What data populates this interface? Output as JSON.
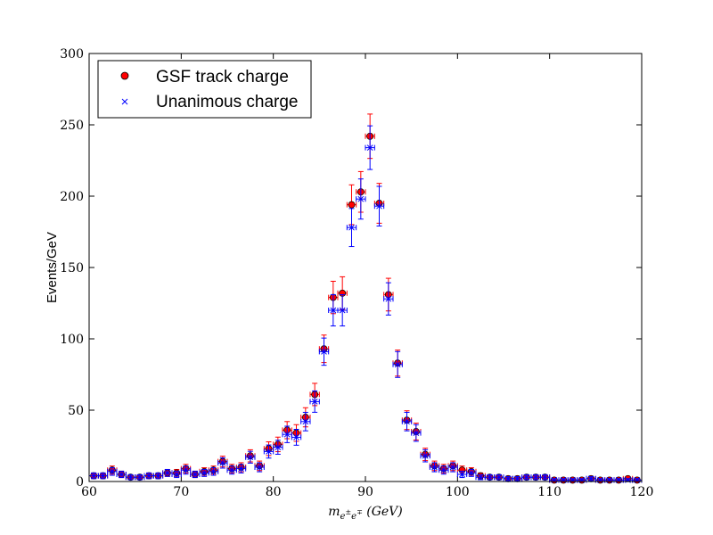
{
  "chart_data": {
    "type": "scatter",
    "title": "",
    "xlabel": "",
    "ylabel": "Events/GeV",
    "xlim": [
      60,
      120
    ],
    "ylim": [
      0,
      300
    ],
    "xticks": [
      "60",
      "70",
      "80",
      "90",
      "100",
      "110",
      "120"
    ],
    "yticks": [
      "0",
      "50",
      "100",
      "150",
      "200",
      "250",
      "300"
    ],
    "grid": false,
    "legend_position": "top-left",
    "x": [
      60.5,
      61.5,
      62.5,
      63.5,
      64.5,
      65.5,
      66.5,
      67.5,
      68.5,
      69.5,
      70.5,
      71.5,
      72.5,
      73.5,
      74.5,
      75.5,
      76.5,
      77.5,
      78.5,
      79.5,
      80.5,
      81.5,
      82.5,
      83.5,
      84.5,
      85.5,
      86.5,
      87.5,
      88.5,
      89.5,
      90.5,
      91.5,
      92.5,
      93.5,
      94.5,
      95.5,
      96.5,
      97.5,
      98.5,
      99.5,
      100.5,
      101.5,
      102.5,
      103.5,
      104.5,
      105.5,
      106.5,
      107.5,
      108.5,
      109.5,
      110.5,
      111.5,
      112.5,
      113.5,
      114.5,
      115.5,
      116.5,
      117.5,
      118.5,
      119.5
    ],
    "series": [
      {
        "name": "GSF track charge",
        "marker": "circle",
        "color": "#ff0000",
        "error_color": "#ff0000",
        "values": [
          4,
          4,
          8,
          5,
          3,
          3,
          4,
          4,
          6,
          6,
          9,
          5,
          7,
          8,
          14,
          9,
          10,
          18,
          11,
          23,
          26,
          36,
          34,
          45,
          61,
          93,
          129,
          132,
          194,
          203,
          242,
          195,
          131,
          83,
          43,
          35,
          19,
          11,
          9,
          11,
          8,
          7,
          4,
          3,
          3,
          2,
          2,
          3,
          3,
          3,
          1,
          1,
          1,
          1,
          2,
          1,
          1,
          1,
          2,
          1
        ]
      },
      {
        "name": "Unanimous charge",
        "marker": "x",
        "color": "#0000ff",
        "error_color": "#0000ff",
        "values": [
          4,
          4,
          7,
          5,
          3,
          3,
          4,
          4,
          6,
          5,
          8,
          5,
          6,
          7,
          13,
          8,
          9,
          17,
          10,
          21,
          24,
          33,
          31,
          42,
          56,
          91,
          120,
          120,
          178,
          198,
          234,
          193,
          128,
          82,
          42,
          34,
          18,
          10,
          8,
          10,
          5,
          6,
          3,
          3,
          3,
          2,
          2,
          3,
          3,
          3,
          1,
          1,
          1,
          1,
          2,
          1,
          1,
          1,
          1,
          1
        ]
      }
    ]
  }
}
